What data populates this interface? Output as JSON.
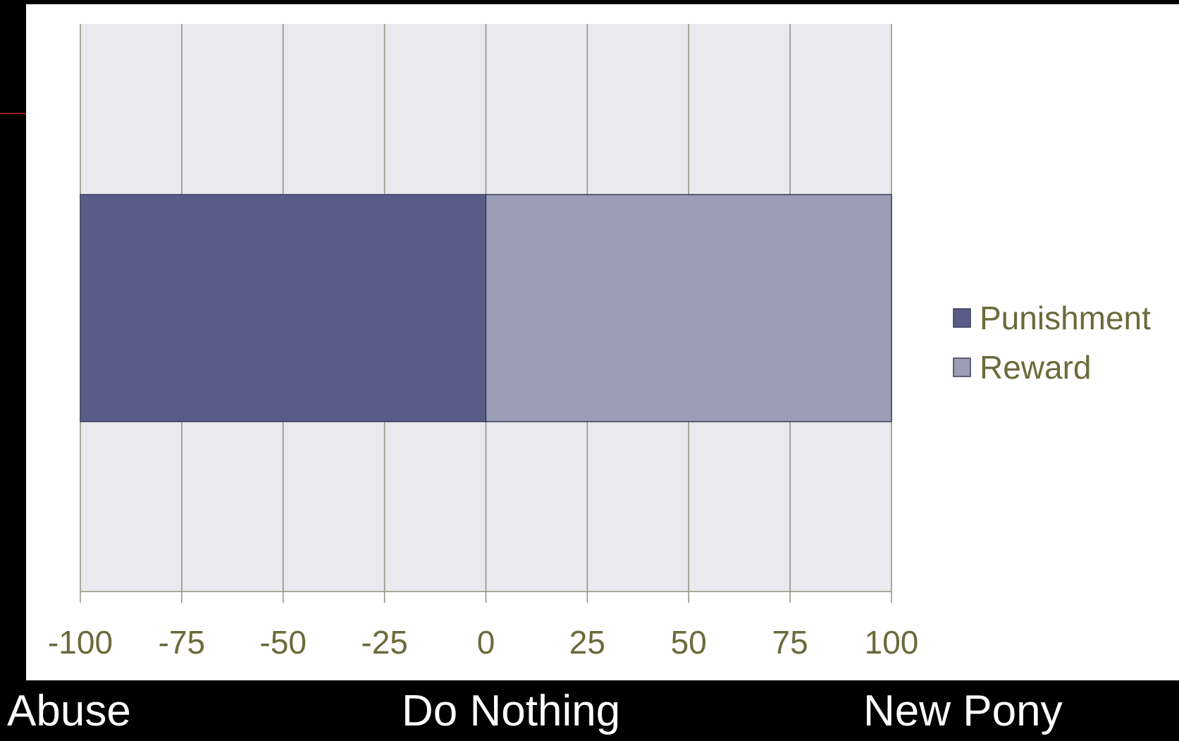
{
  "chart_data": {
    "type": "bar",
    "orientation": "horizontal",
    "stacked": true,
    "title": "",
    "xlabel": "",
    "ylabel": "",
    "xlim": [
      -100,
      100
    ],
    "xticks": [
      "-100",
      "-75",
      "-50",
      "-25",
      "0",
      "25",
      "50",
      "75",
      "100"
    ],
    "grid": true,
    "legend_position": "right",
    "series": [
      {
        "name": "Punishment",
        "start": -100,
        "end": 0,
        "color": "#5a5c88"
      },
      {
        "name": "Reward",
        "start": 0,
        "end": 100,
        "color": "#9d9db8"
      }
    ],
    "colors": {
      "plot_background": "#e9e9ee",
      "chart_background": "#ffffff",
      "gridline": "#8f9080",
      "tick_label": "#6b6a3a"
    }
  },
  "scale_labels": {
    "left": "Abuse",
    "middle": "Do Nothing",
    "right": "New Pony"
  }
}
